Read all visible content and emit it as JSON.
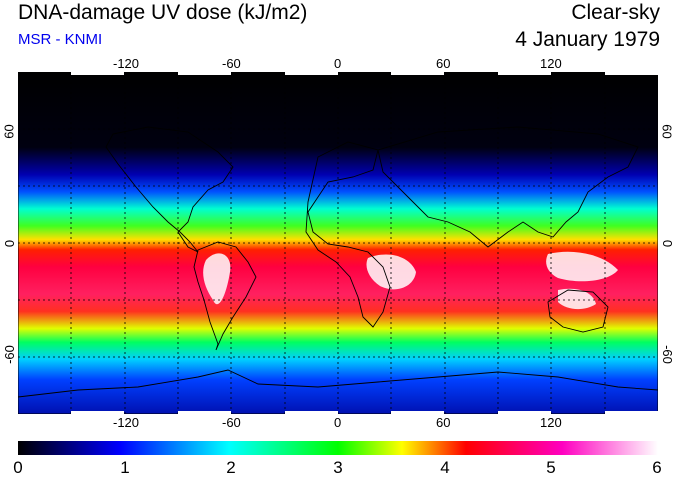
{
  "header": {
    "title": "DNA-damage UV dose (kJ/m2)",
    "subtitle": "MSR - KNMI",
    "sky_condition": "Clear-sky",
    "date": "4 January 1979"
  },
  "colors": {
    "subtitle": "#0000ee",
    "ocean_polar": "#000000",
    "low_dose": "#0000ff",
    "mid_dose": "#00ff00",
    "high_dose": "#ff0000",
    "peak_dose": "#ff00ff"
  },
  "map": {
    "projection": "equirectangular",
    "lon_ticks": [
      "-120",
      "-60",
      "0",
      "60",
      "120"
    ],
    "lat_ticks": [
      "60",
      "0",
      "-60"
    ],
    "grid": true
  },
  "colorbar": {
    "ticks": [
      "0",
      "1",
      "2",
      "3",
      "4",
      "5",
      "6"
    ],
    "stops": [
      "#000000",
      "#0000ff",
      "#00ffff",
      "#00ff00",
      "#ffff00",
      "#ff0000",
      "#ff00ff",
      "#ffffff"
    ]
  }
}
